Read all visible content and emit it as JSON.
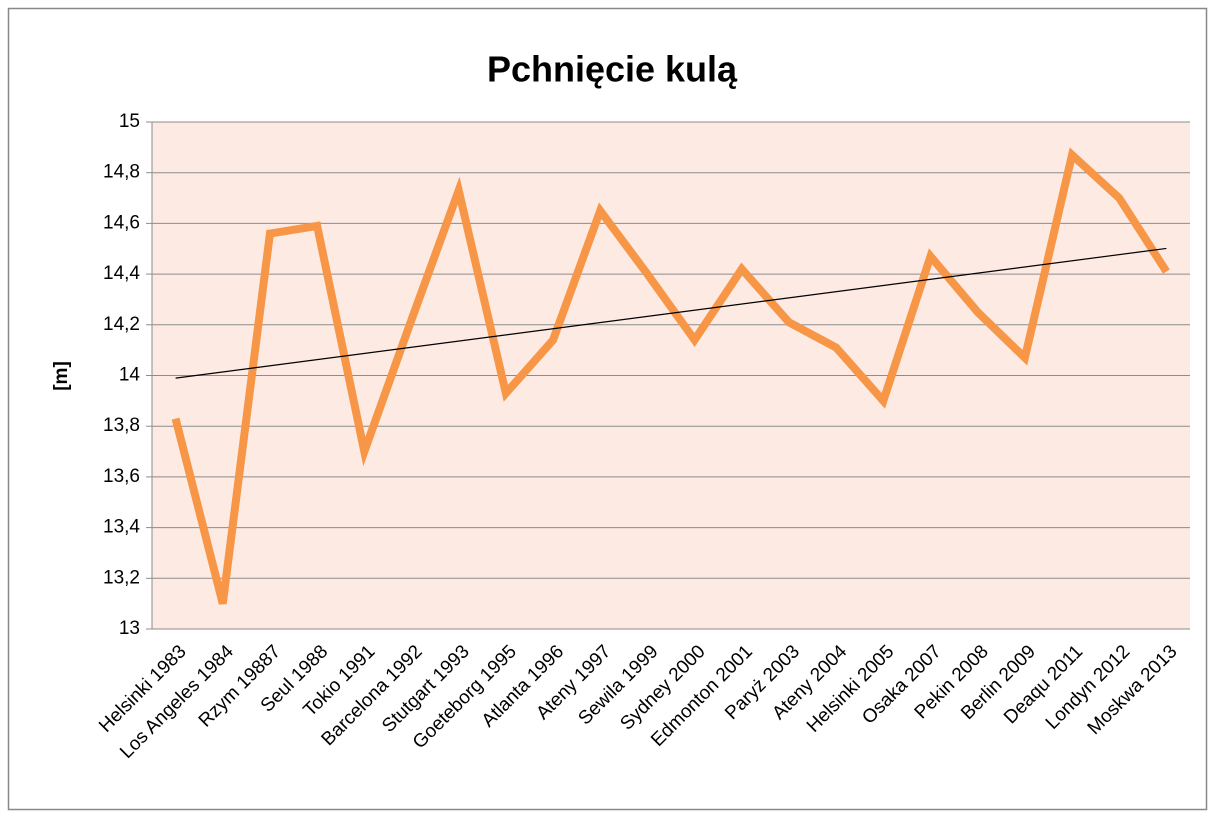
{
  "chart_data": {
    "type": "line",
    "title": "Pchnięcie kulą",
    "y_label": "[m]",
    "categories": [
      "Helsinki 1983",
      "Los Angeles 1984",
      "Rzym 19887",
      "Seul 1988",
      "Tokio 1991",
      "Barcelona 1992",
      "Stutgart 1993",
      "Goeteborg 1995",
      "Atlanta 1996",
      "Ateny 1997",
      "Sewila 1999",
      "Sydney 2000",
      "Edmonton 2001",
      "Paryż 2003",
      "Ateny 2004",
      "Helsinki 2005",
      "Osaka 2007",
      "Pekin 2008",
      "Berlin 2009",
      "Deaqu 2011",
      "Londyn 2012",
      "Moskwa 2013"
    ],
    "series": [
      {
        "color": "#f79646",
        "values": [
          13.83,
          13.1,
          14.56,
          14.59,
          13.7,
          14.22,
          14.73,
          13.93,
          14.14,
          14.65,
          14.4,
          14.14,
          14.42,
          14.21,
          14.11,
          13.9,
          14.47,
          14.25,
          14.07,
          14.87,
          14.7,
          14.41
        ]
      }
    ],
    "ylim": [
      13,
      15
    ],
    "yticks": [
      13,
      {
        "value": 13.2,
        "label": "13,2"
      },
      {
        "value": 13.4,
        "label": "13,4"
      },
      {
        "value": 13.6,
        "label": "13,6"
      },
      {
        "value": 13.8,
        "label": "13,8"
      },
      14,
      {
        "value": 14.2,
        "label": "14,2"
      },
      {
        "value": 14.4,
        "label": "14,4"
      },
      {
        "value": 14.6,
        "label": "14,6"
      },
      {
        "value": 14.8,
        "label": "14,8"
      },
      15
    ],
    "grid": true,
    "trendline": true,
    "trendline_color": "#000000",
    "plot_background": "#fdeae3"
  }
}
